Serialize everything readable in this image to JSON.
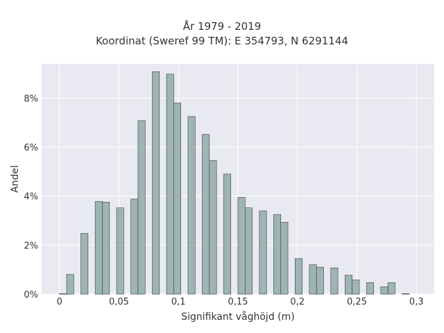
{
  "chart_data": {
    "type": "bar",
    "title": "År 1979 - 2019",
    "subtitle": "Koordinat (Sweref 99 TM): E 354793, N 6291144",
    "xlabel": "Signifikant våghöjd (m)",
    "ylabel": "Andel",
    "xlim": [
      -0.015,
      0.315
    ],
    "ylim": [
      0,
      0.094
    ],
    "x_ticks": [
      0,
      0.05,
      0.1,
      0.15,
      0.2,
      0.25,
      0.3
    ],
    "x_tick_labels": [
      "0",
      "0,05",
      "0,1",
      "0,15",
      "0,2",
      "0,25",
      "0,3"
    ],
    "y_ticks": [
      0,
      0.02,
      0.04,
      0.06,
      0.08
    ],
    "y_tick_labels": [
      "0%",
      "2%",
      "4%",
      "6%",
      "8%"
    ],
    "bin_width": 0.006,
    "x": [
      0.003,
      0.009,
      0.021,
      0.033,
      0.039,
      0.051,
      0.063,
      0.069,
      0.081,
      0.093,
      0.099,
      0.111,
      0.123,
      0.129,
      0.141,
      0.153,
      0.159,
      0.171,
      0.183,
      0.189,
      0.201,
      0.213,
      0.219,
      0.231,
      0.243,
      0.249,
      0.261,
      0.273,
      0.279,
      0.291
    ],
    "values": [
      0.0002,
      0.008,
      0.0248,
      0.0378,
      0.0375,
      0.0352,
      0.0388,
      0.0708,
      0.0908,
      0.0898,
      0.078,
      0.0725,
      0.0652,
      0.0545,
      0.049,
      0.0395,
      0.0352,
      0.034,
      0.0325,
      0.0293,
      0.0145,
      0.012,
      0.011,
      0.0107,
      0.0077,
      0.0058,
      0.0047,
      0.003,
      0.0047,
      0.0002
    ],
    "bar_color": "#9fb4b4",
    "bar_edge_color": "#2f3b3b",
    "plot_bg": "#e9e9f2",
    "grid": true,
    "grid_color": "#ffffff",
    "legend": false
  }
}
